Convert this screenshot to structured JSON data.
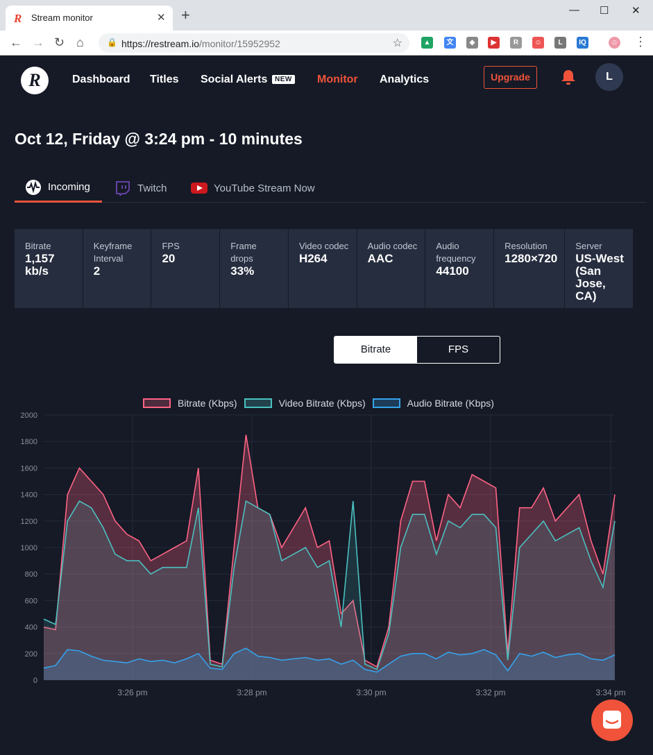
{
  "browser": {
    "tab_title": "Stream monitor",
    "url_host": "https://restream.io",
    "url_path": "/monitor/15952952"
  },
  "header": {
    "nav": [
      {
        "label": "Dashboard"
      },
      {
        "label": "Titles"
      },
      {
        "label": "Social Alerts"
      },
      {
        "label": "Monitor"
      },
      {
        "label": "Analytics"
      }
    ],
    "new_badge": "NEW",
    "upgrade_label": "Upgrade",
    "avatar_initial": "L"
  },
  "title": "Oct 12, Friday @ 3:24 pm - 10 minutes",
  "tabs": [
    {
      "label": "Incoming"
    },
    {
      "label": "Twitch"
    },
    {
      "label": "YouTube Stream Now"
    }
  ],
  "stats": [
    {
      "label": "Bitrate",
      "value": "1,157 kb/s"
    },
    {
      "label": "Keyframe Interval",
      "value": "2"
    },
    {
      "label": "FPS",
      "value": "20"
    },
    {
      "label": "Frame drops",
      "value": "33%"
    },
    {
      "label": "Video codec",
      "value": "H264"
    },
    {
      "label": "Audio codec",
      "value": "AAC"
    },
    {
      "label": "Audio frequency",
      "value": "44100"
    },
    {
      "label": "Resolution",
      "value": "1280×720"
    },
    {
      "label": "Server",
      "value": "US-West (San Jose, CA)"
    }
  ],
  "toggle": {
    "bitrate": "Bitrate",
    "fps": "FPS"
  },
  "colors": {
    "accent": "#f0533a",
    "bitrate": "#ff6384",
    "video": "#4bc0c0",
    "audio": "#36a2eb"
  },
  "chart_data": {
    "type": "area",
    "ylim": [
      0,
      2000
    ],
    "yticks": [
      "0",
      "200",
      "400",
      "600",
      "800",
      "1000",
      "1200",
      "1400",
      "1600",
      "1800",
      "2000"
    ],
    "xticks": [
      "3:26 pm",
      "3:28 pm",
      "3:30 pm",
      "3:32 pm",
      "3:34 pm"
    ],
    "series": [
      {
        "name": "Bitrate (Kbps)",
        "values": [
          400,
          380,
          1400,
          1600,
          1500,
          1400,
          1200,
          1100,
          1050,
          900,
          950,
          1000,
          1050,
          1600,
          150,
          120,
          1000,
          1850,
          1300,
          1250,
          1000,
          1150,
          1300,
          1000,
          1050,
          500,
          600,
          150,
          100,
          400,
          1200,
          1500,
          1500,
          1050,
          1400,
          1300,
          1550,
          1500,
          1450,
          200,
          1300,
          1300,
          1450,
          1200,
          1300,
          1400,
          1050,
          800,
          1400
        ]
      },
      {
        "name": "Video Bitrate (Kbps)",
        "values": [
          460,
          420,
          1200,
          1350,
          1300,
          1150,
          950,
          900,
          900,
          800,
          850,
          850,
          850,
          1300,
          120,
          100,
          850,
          1350,
          1300,
          1250,
          900,
          950,
          1000,
          850,
          900,
          400,
          1350,
          120,
          80,
          350,
          1000,
          1250,
          1250,
          950,
          1200,
          1150,
          1250,
          1250,
          1150,
          150,
          1000,
          1100,
          1200,
          1050,
          1100,
          1150,
          900,
          700,
          1200
        ]
      },
      {
        "name": "Audio Bitrate (Kbps)",
        "values": [
          90,
          110,
          230,
          220,
          180,
          150,
          140,
          130,
          160,
          140,
          150,
          130,
          160,
          200,
          90,
          80,
          200,
          240,
          180,
          170,
          150,
          160,
          170,
          150,
          160,
          120,
          150,
          80,
          60,
          120,
          180,
          200,
          200,
          160,
          210,
          190,
          200,
          230,
          190,
          70,
          200,
          180,
          210,
          170,
          190,
          200,
          160,
          150,
          190
        ]
      }
    ]
  }
}
